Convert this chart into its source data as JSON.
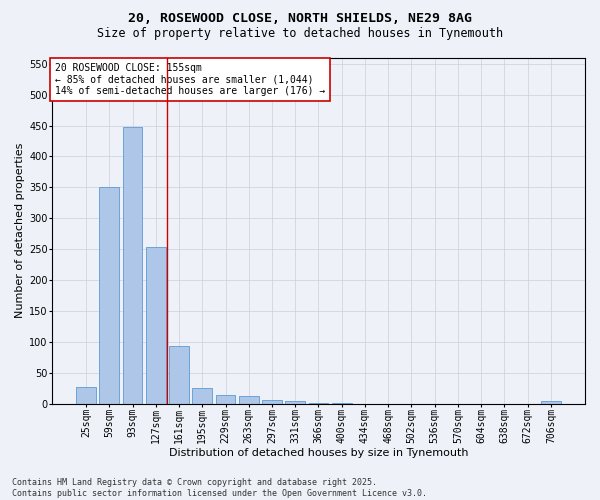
{
  "title_line1": "20, ROSEWOOD CLOSE, NORTH SHIELDS, NE29 8AG",
  "title_line2": "Size of property relative to detached houses in Tynemouth",
  "xlabel": "Distribution of detached houses by size in Tynemouth",
  "ylabel": "Number of detached properties",
  "categories": [
    "25sqm",
    "59sqm",
    "93sqm",
    "127sqm",
    "161sqm",
    "195sqm",
    "229sqm",
    "263sqm",
    "297sqm",
    "331sqm",
    "366sqm",
    "400sqm",
    "434sqm",
    "468sqm",
    "502sqm",
    "536sqm",
    "570sqm",
    "604sqm",
    "638sqm",
    "672sqm",
    "706sqm"
  ],
  "values": [
    28,
    350,
    448,
    253,
    93,
    25,
    14,
    12,
    7,
    5,
    2,
    1,
    0,
    0,
    0,
    0,
    0,
    0,
    0,
    0,
    4
  ],
  "bar_color": "#aec6e8",
  "bar_edge_color": "#5b9bd5",
  "vline_x_index": 4,
  "vline_color": "#cc0000",
  "annotation_text": "20 ROSEWOOD CLOSE: 155sqm\n← 85% of detached houses are smaller (1,044)\n14% of semi-detached houses are larger (176) →",
  "annotation_box_color": "white",
  "annotation_box_edge": "#cc0000",
  "ylim": [
    0,
    560
  ],
  "yticks": [
    0,
    50,
    100,
    150,
    200,
    250,
    300,
    350,
    400,
    450,
    500,
    550
  ],
  "background_color": "#eef2f8",
  "grid_color": "#c8d0de",
  "footer_text": "Contains HM Land Registry data © Crown copyright and database right 2025.\nContains public sector information licensed under the Open Government Licence v3.0.",
  "title_fontsize": 9.5,
  "subtitle_fontsize": 8.5,
  "ylabel_fontsize": 8,
  "xlabel_fontsize": 8,
  "tick_fontsize": 7,
  "annotation_fontsize": 7,
  "footer_fontsize": 6
}
